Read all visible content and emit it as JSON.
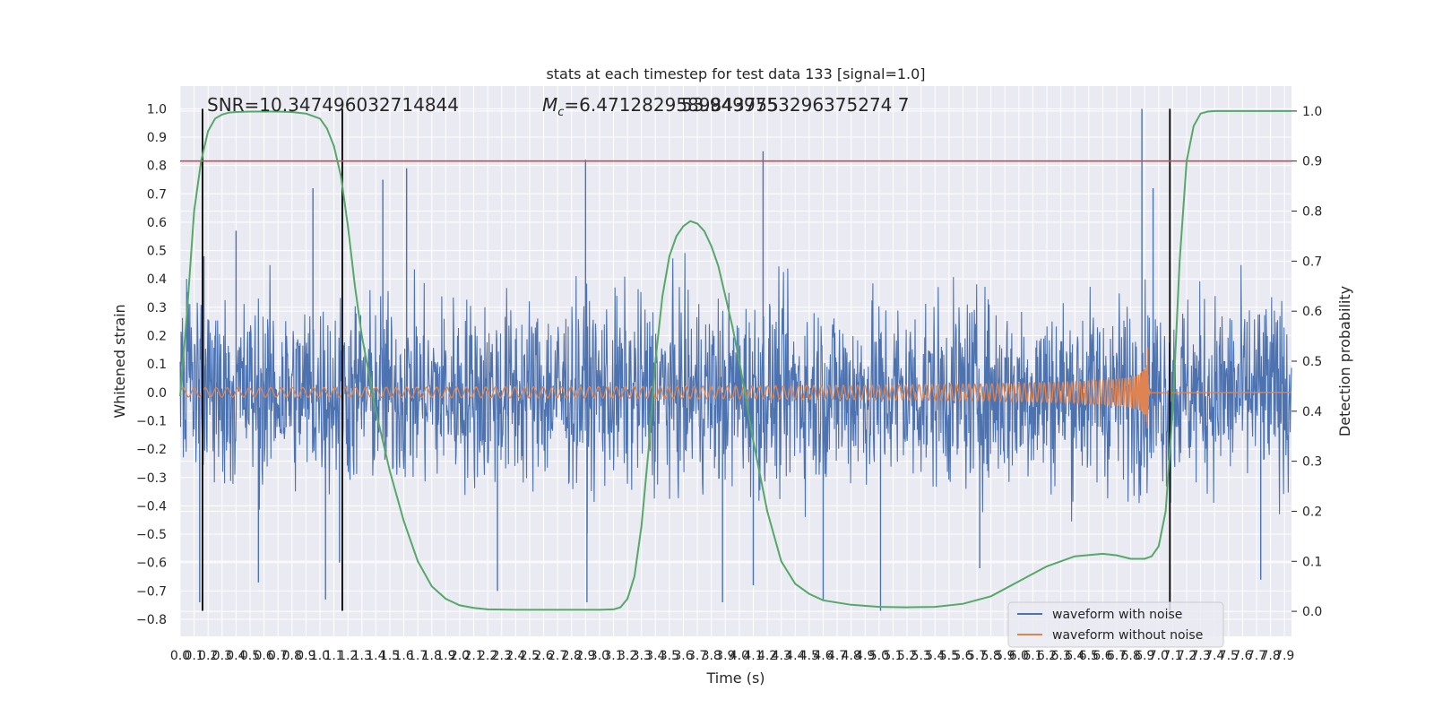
{
  "chart_data": {
    "type": "line",
    "title": "stats at each timestep for test data 133 [signal=1.0]",
    "xlabel": "Time (s)",
    "ylabel": "Whitened strain",
    "y2label": "Detection probability",
    "xlim": [
      0.0,
      7.95
    ],
    "ylim": [
      -0.86,
      1.08
    ],
    "y2lim": [
      -0.05,
      1.05
    ],
    "grid": true,
    "x_ticks": [
      0.0,
      0.1,
      0.2,
      0.3,
      0.4,
      0.5,
      0.6,
      0.7,
      0.8,
      0.9,
      1.0,
      1.1,
      1.2,
      1.3,
      1.4,
      1.5,
      1.6,
      1.7,
      1.8,
      1.9,
      2.0,
      2.1,
      2.2,
      2.3,
      2.4,
      2.5,
      2.6,
      2.7,
      2.8,
      2.9,
      3.0,
      3.1,
      3.2,
      3.3,
      3.4,
      3.5,
      3.6,
      3.7,
      3.8,
      3.9,
      4.0,
      4.1,
      4.2,
      4.3,
      4.4,
      4.5,
      4.6,
      4.7,
      4.8,
      4.9,
      5.0,
      5.1,
      5.2,
      5.3,
      5.4,
      5.5,
      5.6,
      5.7,
      5.8,
      5.9,
      6.0,
      6.1,
      6.2,
      6.3,
      6.4,
      6.5,
      6.6,
      6.7,
      6.8,
      6.9,
      7.0,
      7.1,
      7.2,
      7.3,
      7.4,
      7.5,
      7.6,
      7.7,
      7.8,
      7.9
    ],
    "x_tick_labels": [
      "0.0",
      "0.1",
      "0.2",
      "0.3",
      "0.4",
      "0.5",
      "0.6",
      "0.7",
      "0.8",
      "0.9",
      "1.0",
      "1.1",
      "1.2",
      "1.3",
      "1.4",
      "1.5",
      "1.6",
      "1.7",
      "1.8",
      "1.9",
      "2.0",
      "2.1",
      "2.2",
      "2.3",
      "2.4",
      "2.5",
      "2.6",
      "2.7",
      "2.8",
      "2.9",
      "3.0",
      "3.1",
      "3.2",
      "3.3",
      "3.4",
      "3.5",
      "3.6",
      "3.7",
      "3.8",
      "3.9",
      "4.0",
      "4.1",
      "4.2",
      "4.3",
      "4.4",
      "4.5",
      "4.6",
      "4.7",
      "4.8",
      "4.9",
      "5.0",
      "5.1",
      "5.2",
      "5.3",
      "5.4",
      "5.5",
      "5.6",
      "5.7",
      "5.8",
      "5.9",
      "6.0",
      "6.1",
      "6.2",
      "6.3",
      "6.4",
      "6.5",
      "6.6",
      "6.7",
      "6.8",
      "6.9",
      "7.0",
      "7.1",
      "7.2",
      "7.3",
      "7.4",
      "7.5",
      "7.6",
      "7.7",
      "7.8",
      "7.9"
    ],
    "y_ticks": [
      -0.8,
      -0.7,
      -0.6,
      -0.5,
      -0.4,
      -0.3,
      -0.2,
      -0.1,
      0.0,
      0.1,
      0.2,
      0.3,
      0.4,
      0.5,
      0.6,
      0.7,
      0.8,
      0.9,
      1.0
    ],
    "y_tick_labels": [
      "−0.8",
      "−0.7",
      "−0.6",
      "−0.5",
      "−0.4",
      "−0.3",
      "−0.2",
      "−0.1",
      "0.0",
      "0.1",
      "0.2",
      "0.3",
      "0.4",
      "0.5",
      "0.6",
      "0.7",
      "0.8",
      "0.9",
      "1.0"
    ],
    "y2_ticks": [
      0.0,
      0.1,
      0.2,
      0.3,
      0.4,
      0.5,
      0.6,
      0.7,
      0.8,
      0.9,
      1.0
    ],
    "y2_tick_labels": [
      "0.0",
      "0.1",
      "0.2",
      "0.3",
      "0.4",
      "0.5",
      "0.6",
      "0.7",
      "0.8",
      "0.9",
      "1.0"
    ],
    "series": [
      {
        "name": "waveform with noise",
        "color": "#4c72b0",
        "kind": "noise",
        "t_start": 0.0,
        "t_end": 7.95,
        "band": 0.3,
        "peaks": [
          {
            "t": 0.14,
            "v": -0.74
          },
          {
            "t": 0.17,
            "v": 0.48
          },
          {
            "t": 0.4,
            "v": 0.57
          },
          {
            "t": 0.56,
            "v": -0.67
          },
          {
            "t": 0.95,
            "v": 0.72
          },
          {
            "t": 1.04,
            "v": -0.73
          },
          {
            "t": 1.14,
            "v": -0.6
          },
          {
            "t": 1.45,
            "v": 0.75
          },
          {
            "t": 1.62,
            "v": 0.79
          },
          {
            "t": 2.27,
            "v": -0.7
          },
          {
            "t": 2.9,
            "v": 0.82
          },
          {
            "t": 2.91,
            "v": -0.74
          },
          {
            "t": 3.88,
            "v": -0.74
          },
          {
            "t": 4.1,
            "v": -0.68
          },
          {
            "t": 4.17,
            "v": 0.85
          },
          {
            "t": 4.6,
            "v": -0.73
          },
          {
            "t": 5.01,
            "v": -0.77
          },
          {
            "t": 5.72,
            "v": -0.62
          },
          {
            "t": 6.96,
            "v": 0.72
          },
          {
            "t": 6.88,
            "v": 1.0
          },
          {
            "t": 7.73,
            "v": -0.66
          }
        ]
      },
      {
        "name": "waveform without noise",
        "color": "#dd8452",
        "kind": "chirp",
        "t_start": 0.0,
        "t_merger": 6.92,
        "t_end": 7.95,
        "amp_start": 0.016,
        "amp_peak": 0.21,
        "freq_start": 12.5
      },
      {
        "name": "detection probability",
        "color": "#55a868",
        "axis": "right",
        "x": [
          0.0,
          0.05,
          0.1,
          0.15,
          0.2,
          0.25,
          0.3,
          0.35,
          0.4,
          0.5,
          0.6,
          0.7,
          0.8,
          0.9,
          1.0,
          1.05,
          1.1,
          1.15,
          1.2,
          1.25,
          1.3,
          1.4,
          1.5,
          1.6,
          1.7,
          1.8,
          1.9,
          2.0,
          2.1,
          2.2,
          2.4,
          2.6,
          2.8,
          3.0,
          3.1,
          3.15,
          3.2,
          3.25,
          3.3,
          3.35,
          3.4,
          3.45,
          3.5,
          3.55,
          3.6,
          3.65,
          3.7,
          3.75,
          3.8,
          3.85,
          3.9,
          3.95,
          4.0,
          4.05,
          4.1,
          4.2,
          4.3,
          4.4,
          4.5,
          4.6,
          4.8,
          5.0,
          5.2,
          5.4,
          5.6,
          5.8,
          6.0,
          6.2,
          6.4,
          6.6,
          6.7,
          6.8,
          6.9,
          6.95,
          7.0,
          7.05,
          7.1,
          7.15,
          7.2,
          7.25,
          7.3,
          7.35,
          7.4,
          7.45,
          7.5,
          7.7,
          7.95
        ],
        "y": [
          0.43,
          0.6,
          0.8,
          0.9,
          0.96,
          0.985,
          0.993,
          0.997,
          0.998,
          0.999,
          0.999,
          0.999,
          0.998,
          0.995,
          0.985,
          0.965,
          0.93,
          0.87,
          0.77,
          0.65,
          0.55,
          0.4,
          0.28,
          0.18,
          0.1,
          0.05,
          0.025,
          0.012,
          0.007,
          0.004,
          0.003,
          0.003,
          0.003,
          0.003,
          0.004,
          0.008,
          0.025,
          0.07,
          0.17,
          0.32,
          0.5,
          0.63,
          0.71,
          0.75,
          0.77,
          0.78,
          0.775,
          0.76,
          0.73,
          0.69,
          0.63,
          0.57,
          0.5,
          0.42,
          0.34,
          0.2,
          0.1,
          0.055,
          0.035,
          0.022,
          0.013,
          0.009,
          0.008,
          0.009,
          0.015,
          0.03,
          0.06,
          0.09,
          0.11,
          0.115,
          0.112,
          0.105,
          0.105,
          0.11,
          0.13,
          0.2,
          0.4,
          0.7,
          0.9,
          0.97,
          0.995,
          0.999,
          1.0,
          1.0,
          1.0,
          1.0,
          1.0
        ]
      }
    ],
    "threshold_line": {
      "axis": "right",
      "value": 0.9,
      "color": "#c44e52"
    },
    "vertical_markers": {
      "x": [
        0.16,
        1.16,
        7.08
      ],
      "color": "#000000",
      "ymin": -0.77,
      "ymax": 1.0
    },
    "annotations": [
      {
        "text": "SNR=10.347496032714844"
      },
      {
        "text_main": "M",
        "text_sub": "c",
        "text_rest": "=6.4712829589843755"
      },
      {
        "text": "53.9499753296375274 7"
      }
    ],
    "legend": {
      "placement": "bottom-right",
      "entries": [
        {
          "label": "waveform with noise",
          "color": "#4c72b0"
        },
        {
          "label": "waveform without noise",
          "color": "#dd8452"
        }
      ]
    }
  }
}
